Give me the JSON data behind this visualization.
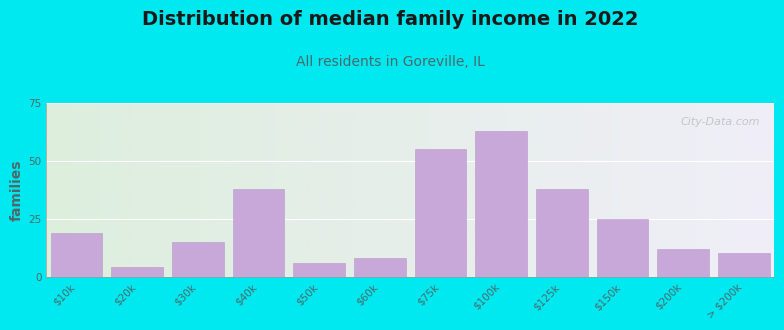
{
  "title": "Distribution of median family income in 2022",
  "subtitle": "All residents in Goreville, IL",
  "ylabel": "families",
  "categories": [
    "$10k",
    "$20k",
    "$30k",
    "$40k",
    "$50k",
    "$60k",
    "$75k",
    "$100k",
    "$125k",
    "$150k",
    "$200k",
    "> $200k"
  ],
  "values": [
    19,
    4,
    15,
    38,
    6,
    8,
    55,
    63,
    38,
    25,
    12,
    10
  ],
  "bar_color": "#c8a8d8",
  "bar_edge_color": "#b898c8",
  "background_outer": "#00e8f0",
  "background_plot_left": "#ddeedd",
  "background_plot_right": "#f0eef8",
  "ylim": [
    0,
    75
  ],
  "yticks": [
    0,
    25,
    50,
    75
  ],
  "title_fontsize": 14,
  "subtitle_fontsize": 10,
  "ylabel_fontsize": 10,
  "tick_fontsize": 7.5,
  "watermark": "City-Data.com",
  "title_color": "#1a1a1a",
  "subtitle_color": "#4a6a6a",
  "ylabel_color": "#4a6a6a",
  "tick_color": "#4a6a6a"
}
